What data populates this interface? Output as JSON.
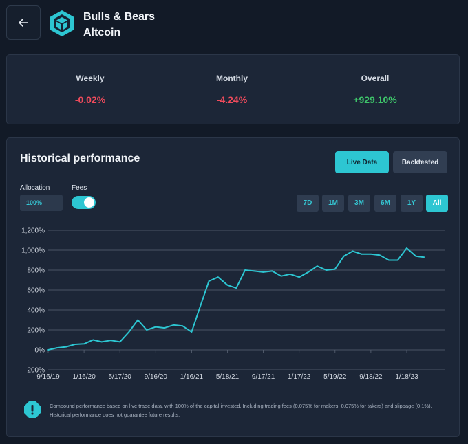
{
  "header": {
    "back_icon": "arrow-left-icon",
    "logo_icon": "hexagon-cube-logo",
    "title_line1": "Bulls & Bears",
    "title_line2": "Altcoin"
  },
  "stats": [
    {
      "label": "Weekly",
      "value": "-0.02%",
      "trend": "negative"
    },
    {
      "label": "Monthly",
      "value": "-4.24%",
      "trend": "negative"
    },
    {
      "label": "Overall",
      "value": "+929.10%",
      "trend": "positive"
    }
  ],
  "performance": {
    "title": "Historical performance",
    "modes": [
      "Live Data",
      "Backtested"
    ],
    "active_mode": "Live Data",
    "allocation_label": "Allocation",
    "allocation_value": "100%",
    "fees_label": "Fees",
    "fees_enabled": true,
    "ranges": [
      "7D",
      "1M",
      "3M",
      "6M",
      "1Y",
      "All"
    ],
    "active_range": "All"
  },
  "colors": {
    "accent": "#2dc6d2",
    "negative": "#ef4b5c",
    "positive": "#3ec46a",
    "background": "#121a27",
    "card": "#1c2637"
  },
  "chart_data": {
    "type": "line",
    "title": "",
    "xlabel": "",
    "ylabel": "",
    "ylim": [
      -200,
      1200
    ],
    "y_ticks": [
      "-200%",
      "0%",
      "200%",
      "400%",
      "600%",
      "800%",
      "1,000%",
      "1,200%"
    ],
    "x_ticks": [
      "9/16/19",
      "1/16/20",
      "5/17/20",
      "9/16/20",
      "1/16/21",
      "5/18/21",
      "9/17/21",
      "1/17/22",
      "5/19/22",
      "9/18/22",
      "1/18/23"
    ],
    "grid": true,
    "series": [
      {
        "color": "#2dc6d2",
        "x": [
          "9/16/19",
          "10/16/19",
          "11/16/19",
          "12/16/19",
          "1/16/20",
          "2/16/20",
          "3/16/20",
          "4/16/20",
          "5/17/20",
          "6/17/20",
          "7/17/20",
          "8/16/20",
          "9/16/20",
          "10/16/20",
          "11/16/20",
          "12/16/20",
          "1/16/21",
          "2/16/21",
          "3/16/21",
          "4/16/21",
          "5/18/21",
          "6/17/21",
          "7/17/21",
          "8/17/21",
          "9/17/21",
          "10/17/21",
          "11/17/21",
          "12/17/21",
          "1/17/22",
          "2/17/22",
          "3/19/22",
          "4/19/22",
          "5/19/22",
          "6/18/22",
          "7/18/22",
          "8/18/22",
          "9/18/22",
          "10/18/22",
          "11/18/22",
          "12/18/22",
          "1/18/23",
          "2/18/23",
          "3/18/23"
        ],
        "values": [
          0,
          20,
          30,
          55,
          60,
          100,
          80,
          95,
          80,
          180,
          300,
          200,
          230,
          220,
          250,
          240,
          180,
          450,
          690,
          730,
          650,
          620,
          800,
          790,
          780,
          790,
          740,
          760,
          730,
          780,
          840,
          800,
          810,
          940,
          990,
          960,
          960,
          950,
          900,
          900,
          1020,
          940,
          930
        ]
      }
    ]
  },
  "disclaimer": {
    "icon": "exclamation-octagon-icon",
    "text": "Compound performance based on live trade data, with 100% of the capital invested. Including trading fees (0.075% for makers, 0.075% for takers) and slippage (0.1%). Historical performance does not guarantee future results."
  }
}
